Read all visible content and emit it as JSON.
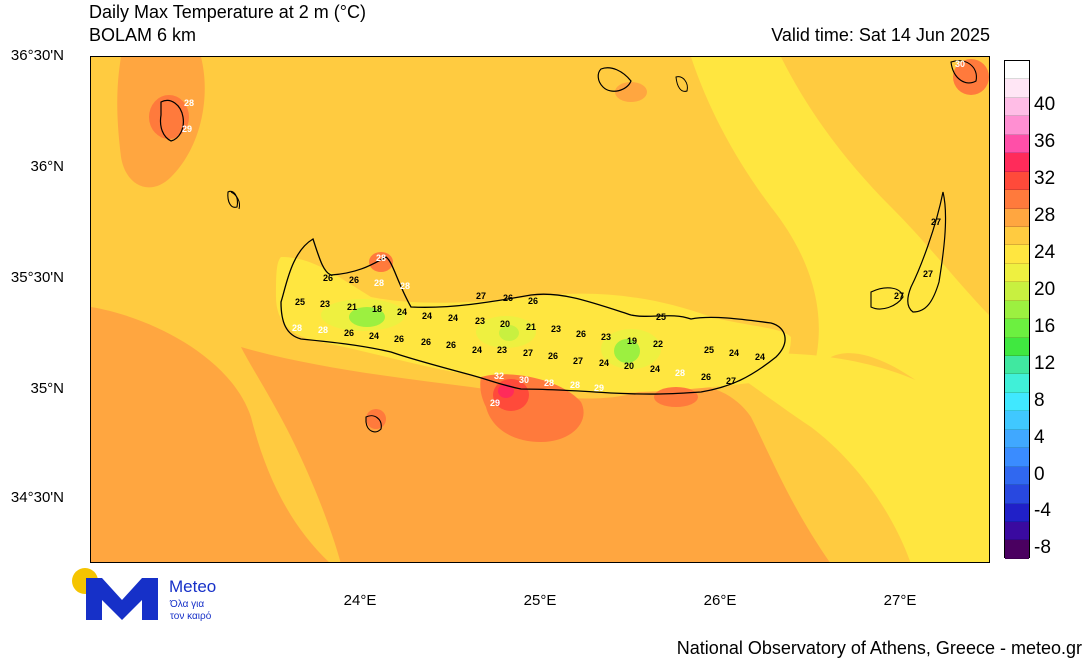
{
  "header": {
    "title": "Daily Max Temperature at 2 m (°C)",
    "subtitle": "BOLAM 6 km",
    "valid_time": "Valid time: Sat 14 Jun 2025"
  },
  "axes": {
    "lat_labels": [
      "36°30'N",
      "36°N",
      "35°30'N",
      "35°N",
      "34°30'N"
    ],
    "lon_labels": [
      "24°E",
      "25°E",
      "26°E",
      "27°E"
    ]
  },
  "colorbar": {
    "labels": [
      "40",
      "36",
      "32",
      "28",
      "24",
      "20",
      "16",
      "12",
      "8",
      "4",
      "0",
      "-4",
      "-8"
    ],
    "colors": [
      "#ffffff",
      "#ffe6f5",
      "#ffbde6",
      "#ff8fd2",
      "#ff4fa8",
      "#ff2b5a",
      "#ff4a3a",
      "#ff7a3c",
      "#ffa640",
      "#ffcb40",
      "#ffe640",
      "#eef040",
      "#c8f040",
      "#9cf040",
      "#6cf040",
      "#40e840",
      "#40e8a0",
      "#40f0d8",
      "#40e8ff",
      "#40c8ff",
      "#40a8ff",
      "#3a8cff",
      "#3068f0",
      "#2848e0",
      "#2020c8",
      "#3a0aa0",
      "#4a0060"
    ]
  },
  "map_labels": [
    {
      "text": "28",
      "color": "white"
    },
    {
      "text": "29",
      "color": "white"
    },
    {
      "text": "28",
      "color": "white"
    },
    {
      "text": "26",
      "color": "black"
    },
    {
      "text": "26",
      "color": "black"
    },
    {
      "text": "28",
      "color": "white"
    },
    {
      "text": "28",
      "color": "white"
    },
    {
      "text": "25",
      "color": "black"
    },
    {
      "text": "23",
      "color": "black"
    },
    {
      "text": "21",
      "color": "black"
    },
    {
      "text": "18",
      "color": "black"
    },
    {
      "text": "24",
      "color": "black"
    },
    {
      "text": "24",
      "color": "black"
    },
    {
      "text": "24",
      "color": "black"
    },
    {
      "text": "28",
      "color": "white"
    },
    {
      "text": "28",
      "color": "white"
    },
    {
      "text": "26",
      "color": "black"
    },
    {
      "text": "24",
      "color": "black"
    },
    {
      "text": "26",
      "color": "black"
    },
    {
      "text": "26",
      "color": "black"
    },
    {
      "text": "26",
      "color": "black"
    },
    {
      "text": "24",
      "color": "black"
    },
    {
      "text": "27",
      "color": "black"
    },
    {
      "text": "26",
      "color": "black"
    },
    {
      "text": "26",
      "color": "black"
    },
    {
      "text": "23",
      "color": "black"
    },
    {
      "text": "20",
      "color": "black"
    },
    {
      "text": "21",
      "color": "black"
    },
    {
      "text": "23",
      "color": "black"
    },
    {
      "text": "23",
      "color": "black"
    },
    {
      "text": "27",
      "color": "black"
    },
    {
      "text": "26",
      "color": "black"
    },
    {
      "text": "26",
      "color": "black"
    },
    {
      "text": "27",
      "color": "black"
    },
    {
      "text": "23",
      "color": "black"
    },
    {
      "text": "19",
      "color": "black"
    },
    {
      "text": "22",
      "color": "black"
    },
    {
      "text": "24",
      "color": "black"
    },
    {
      "text": "20",
      "color": "black"
    },
    {
      "text": "24",
      "color": "black"
    },
    {
      "text": "25",
      "color": "black"
    },
    {
      "text": "32",
      "color": "white"
    },
    {
      "text": "30",
      "color": "white"
    },
    {
      "text": "28",
      "color": "white"
    },
    {
      "text": "28",
      "color": "white"
    },
    {
      "text": "29",
      "color": "white"
    },
    {
      "text": "29",
      "color": "white"
    },
    {
      "text": "28",
      "color": "white"
    },
    {
      "text": "26",
      "color": "black"
    },
    {
      "text": "27",
      "color": "black"
    },
    {
      "text": "25",
      "color": "black"
    },
    {
      "text": "24",
      "color": "black"
    },
    {
      "text": "24",
      "color": "black"
    },
    {
      "text": "27",
      "color": "black"
    },
    {
      "text": "27",
      "color": "black"
    },
    {
      "text": "27",
      "color": "black"
    },
    {
      "text": "30",
      "color": "white"
    }
  ],
  "logo": {
    "name": "Meteo",
    "tagline_1": "Όλα για",
    "tagline_2": "τον καιρό"
  },
  "footer": {
    "credit": "National Observatory of Athens, Greece - meteo.gr"
  }
}
